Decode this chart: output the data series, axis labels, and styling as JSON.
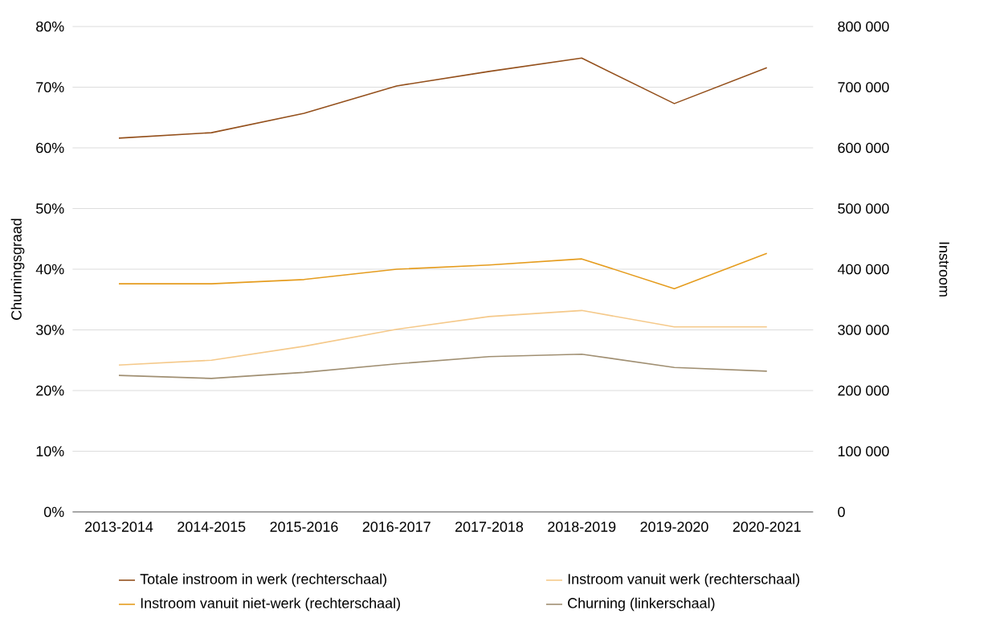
{
  "chart_data": {
    "type": "line",
    "categories": [
      "2013-2014",
      "2014-2015",
      "2015-2016",
      "2016-2017",
      "2017-2018",
      "2018-2019",
      "2019-2020",
      "2020-2021"
    ],
    "ylabel": "Churningsgraad",
    "y2label": "Instroom",
    "ylim": [
      0,
      80
    ],
    "yticks": [
      {
        "value": 0,
        "label": "0%"
      },
      {
        "value": 10,
        "label": "10%"
      },
      {
        "value": 20,
        "label": "20%"
      },
      {
        "value": 30,
        "label": "30%"
      },
      {
        "value": 40,
        "label": "40%"
      },
      {
        "value": 50,
        "label": "50%"
      },
      {
        "value": 60,
        "label": "60%"
      },
      {
        "value": 70,
        "label": "70%"
      },
      {
        "value": 80,
        "label": "80%"
      }
    ],
    "y2lim": [
      0,
      800000
    ],
    "y2ticks": [
      0,
      {
        "value": 100000,
        "label": "100 000"
      },
      {
        "value": 200000,
        "label": "200 000"
      },
      {
        "value": 300000,
        "label": "300 000"
      },
      {
        "value": 400000,
        "label": "400 000"
      },
      {
        "value": 500000,
        "label": "500 000"
      },
      {
        "value": 600000,
        "label": "600 000"
      },
      {
        "value": 700000,
        "label": "700 000"
      },
      {
        "value": 800000,
        "label": "800 000"
      }
    ],
    "series": [
      {
        "name": "Totale instroom in werk (rechterschaal)",
        "color": "#94501c",
        "axis": "y2",
        "values": [
          616000,
          625000,
          657000,
          702000,
          726000,
          748000,
          673000,
          732000
        ]
      },
      {
        "name": "Instroom vanuit niet-werk (rechterschaal)",
        "color": "#e59c1e",
        "axis": "y2",
        "values": [
          376000,
          376000,
          383000,
          400000,
          407000,
          417000,
          368000,
          426000
        ]
      },
      {
        "name": "Instroom vanuit werk (rechterschaal)",
        "color": "#f5c98a",
        "axis": "y2",
        "values": [
          242000,
          250000,
          273000,
          301000,
          322000,
          332000,
          305000,
          305000
        ]
      },
      {
        "name": "Churning (linkerschaal)",
        "color": "#a08f72",
        "axis": "y",
        "values": [
          22.5,
          22.0,
          23.0,
          24.4,
          25.6,
          26.0,
          23.8,
          23.2
        ]
      }
    ],
    "grid": "y",
    "legend": "bottom"
  }
}
